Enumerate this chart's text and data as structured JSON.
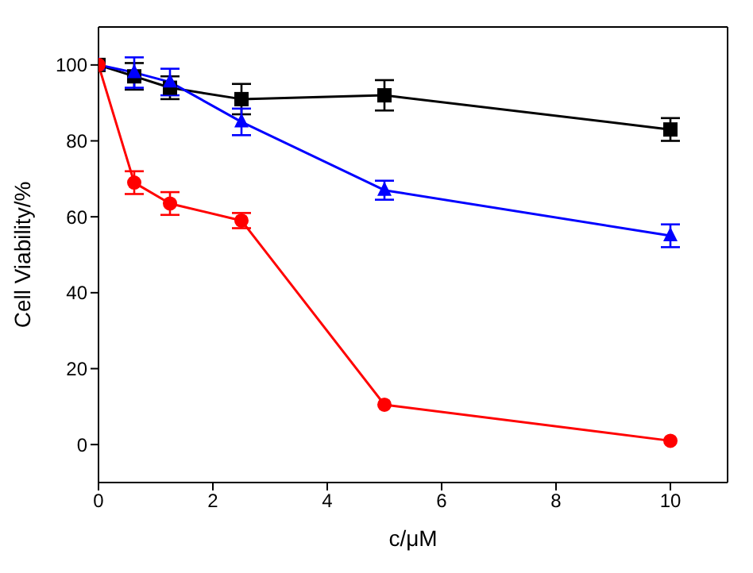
{
  "chart_data": {
    "type": "line",
    "xlabel": "c/μM",
    "ylabel": "Cell Viability/%",
    "x": [
      0,
      0.625,
      1.25,
      2.5,
      5,
      10
    ],
    "series": [
      {
        "color": "#000000",
        "marker": "square",
        "values": [
          100,
          97,
          94,
          91,
          92,
          83
        ],
        "errors": [
          null,
          3.5,
          3,
          4,
          4,
          3
        ]
      },
      {
        "color": "#0000ff",
        "marker": "triangle",
        "values": [
          100,
          98,
          95.5,
          85,
          67,
          55
        ],
        "errors": [
          null,
          4,
          3.5,
          3.5,
          2.5,
          3
        ]
      },
      {
        "color": "#ff0000",
        "marker": "circle",
        "values": [
          100,
          69,
          63.5,
          59,
          10.5,
          1
        ],
        "errors": [
          null,
          3,
          3,
          2,
          null,
          null
        ]
      }
    ],
    "xlim": [
      0,
      11
    ],
    "xticks": [
      0,
      2,
      4,
      6,
      8,
      10
    ],
    "ylim": [
      -10,
      110
    ],
    "yticks": [
      0,
      20,
      40,
      60,
      80,
      100
    ],
    "legend": false,
    "line_style": "solid"
  }
}
